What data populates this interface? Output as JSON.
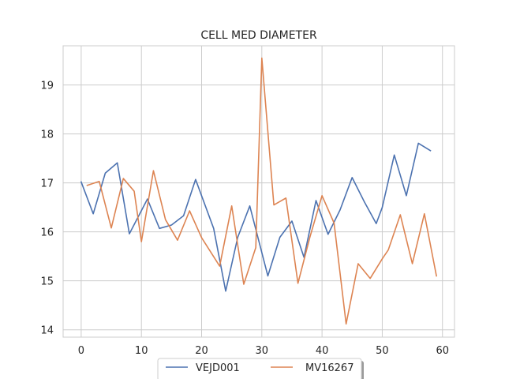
{
  "chart_data": {
    "type": "line",
    "title": "CELL MED DIAMETER",
    "xlabel": "",
    "ylabel": "",
    "xlim": [
      -3,
      62
    ],
    "ylim": [
      13.85,
      19.8
    ],
    "xticks": [
      0,
      10,
      20,
      30,
      40,
      50,
      60
    ],
    "yticks": [
      14,
      15,
      16,
      17,
      18,
      19
    ],
    "grid": true,
    "legend_position": "bottom-center",
    "series": [
      {
        "name": "VEJD001",
        "color": "#4c72b0",
        "x": [
          0,
          2,
          4,
          6,
          8,
          11,
          13,
          15,
          17,
          19,
          22,
          24,
          26,
          28,
          31,
          33,
          35,
          37,
          39,
          41,
          43,
          45,
          47,
          49,
          50,
          52,
          54,
          56,
          58
        ],
        "y": [
          17.02,
          16.37,
          17.2,
          17.41,
          15.96,
          16.67,
          16.07,
          16.14,
          16.33,
          17.07,
          16.07,
          14.79,
          15.89,
          16.53,
          15.1,
          15.89,
          16.22,
          15.48,
          16.64,
          15.95,
          16.45,
          17.11,
          16.62,
          16.17,
          16.5,
          17.57,
          16.74,
          17.81,
          17.66
        ]
      },
      {
        "name": "MV16267",
        "color": "#dd8452",
        "x": [
          1,
          3,
          5,
          7,
          8.8,
          10,
          12,
          14,
          16,
          18,
          20,
          23,
          25,
          27,
          29,
          30,
          32,
          34,
          36,
          38,
          40,
          42,
          44,
          46,
          48,
          50,
          51,
          53,
          55,
          57,
          59
        ],
        "y": [
          16.95,
          17.03,
          16.08,
          17.09,
          16.83,
          15.8,
          17.25,
          16.25,
          15.83,
          16.43,
          15.88,
          15.3,
          16.53,
          14.93,
          15.68,
          19.55,
          16.55,
          16.69,
          14.95,
          15.9,
          16.74,
          16.18,
          14.12,
          15.35,
          15.05,
          15.45,
          15.63,
          16.35,
          15.35,
          16.37,
          15.1
        ]
      }
    ]
  }
}
